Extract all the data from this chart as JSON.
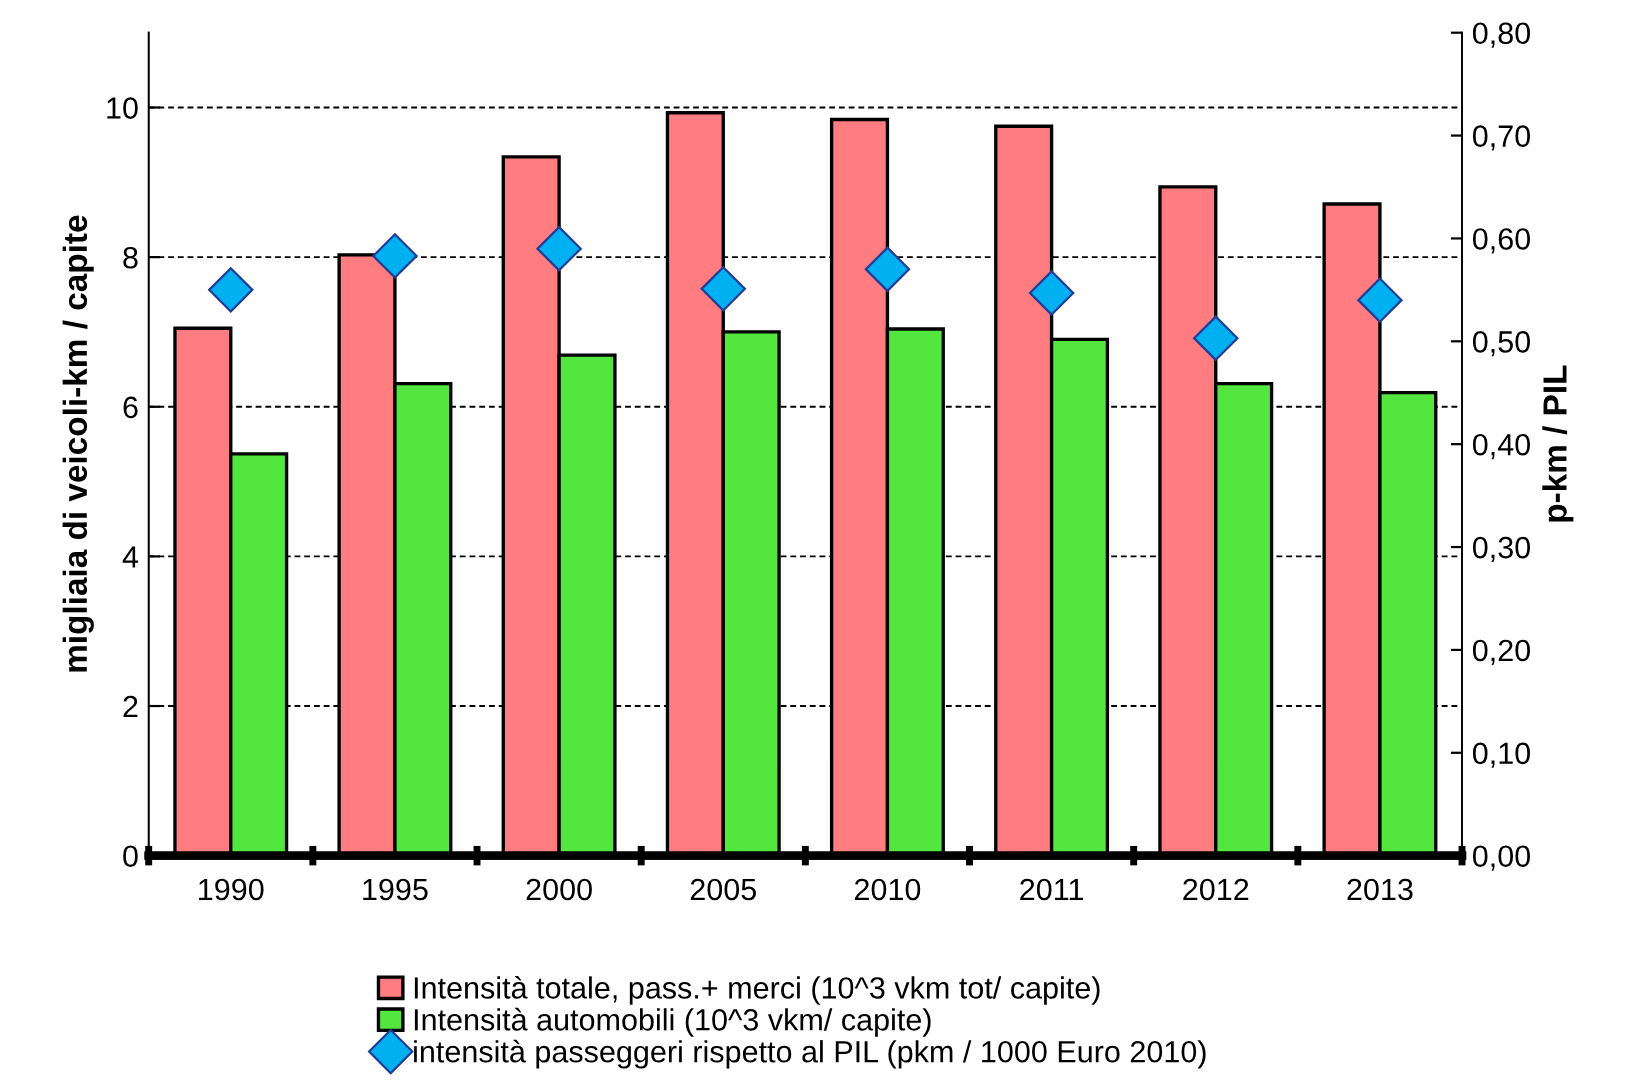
{
  "chart_data": {
    "type": "bar",
    "ylabel": "migliaia di veicoli-km / capite",
    "y2label": "p-km / PIL",
    "categories": [
      "1990",
      "1995",
      "2000",
      "2005",
      "2010",
      "2011",
      "2012",
      "2013"
    ],
    "series": [
      {
        "name": "Intensità totale, pass.+ merci (10^3 vkm tot/ capite)",
        "color": "#ff7c80",
        "values": [
          7.05,
          8.03,
          9.34,
          9.93,
          9.84,
          9.75,
          8.94,
          8.71
        ]
      },
      {
        "name": "Intensità automobili (10^3 vkm/ capite)",
        "color": "#52e63e",
        "values": [
          5.37,
          6.31,
          6.69,
          7.0,
          7.04,
          6.9,
          6.31,
          6.19
        ]
      },
      {
        "name": "intensità passeggeri rispetto al PIL (pkm / 1000 Euro 2010)",
        "type": "scatter",
        "axis": "y2",
        "marker": "diamond",
        "color": "#00b0f0",
        "values": [
          0.55,
          0.583,
          0.59,
          0.551,
          0.57,
          0.547,
          0.503,
          0.54
        ]
      }
    ],
    "ylim": [
      0,
      11
    ],
    "yticks": [
      0,
      2,
      4,
      6,
      8,
      10
    ],
    "y2lim": [
      0,
      0.8
    ],
    "y2ticks": [
      {
        "value": 0,
        "label": "0,00"
      },
      {
        "value": 0.1,
        "label": "0,10"
      },
      {
        "value": 0.2,
        "label": "0,20"
      },
      {
        "value": 0.3,
        "label": "0,30"
      },
      {
        "value": 0.4,
        "label": "0,40"
      },
      {
        "value": 0.5,
        "label": "0,50"
      },
      {
        "value": 0.6,
        "label": "0,60"
      },
      {
        "value": 0.7,
        "label": "0,70"
      },
      {
        "value": 0.8,
        "label": "0,80"
      }
    ],
    "grid": "y",
    "legend": "bottom"
  }
}
